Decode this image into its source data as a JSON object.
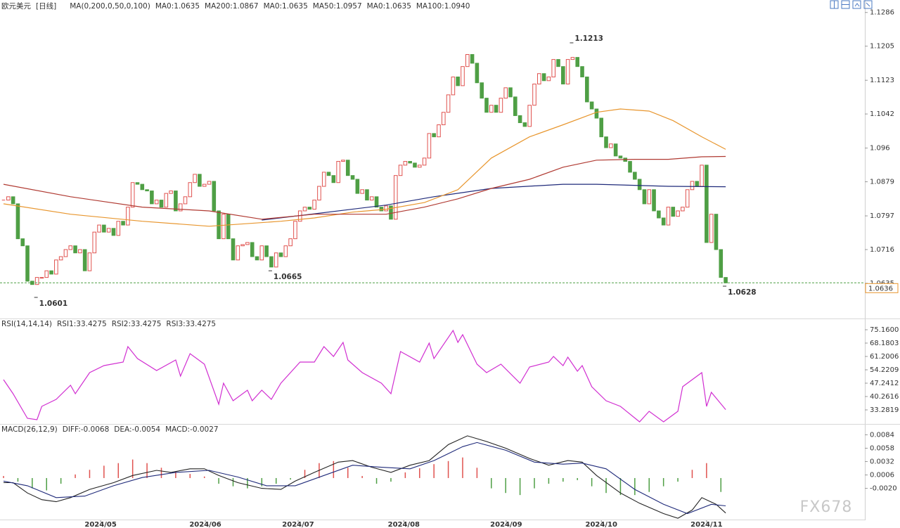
{
  "chart_data": [
    {
      "type": "candlestick",
      "title": "欧元美元",
      "subtitle": "[日线]",
      "indicator": "MA(0,200,0,50,0,100)",
      "up_color": "#e0524f",
      "down_color": "#4f9f45",
      "xlim": [
        -0.74,
        180.1
      ],
      "ylim": [
        1.0552,
        1.1316
      ],
      "yticks": [
        1.1286,
        1.1205,
        1.1123,
        1.1042,
        1.096,
        1.0879,
        1.0797,
        1.0716,
        1.0635
      ],
      "close": [
        1.0835,
        1.0843,
        1.0826,
        1.0742,
        1.0725,
        1.064,
        1.0632,
        1.0649,
        1.0649,
        1.0665,
        1.0657,
        1.0691,
        1.0699,
        1.0716,
        1.0725,
        1.0708,
        1.0716,
        1.0665,
        1.0708,
        1.0758,
        1.0775,
        1.0758,
        1.0767,
        1.075,
        1.0784,
        1.0775,
        1.0818,
        1.0877,
        1.0873,
        1.086,
        1.0857,
        1.0826,
        1.0835,
        1.0818,
        1.0851,
        1.0857,
        1.0809,
        1.0826,
        1.0843,
        1.0877,
        1.0897,
        1.0868,
        1.0873,
        1.088,
        1.0809,
        1.0742,
        1.0801,
        1.0742,
        1.0691,
        1.0725,
        1.0728,
        1.0733,
        1.0699,
        1.0691,
        1.0725,
        1.0699,
        1.0674,
        1.0708,
        1.0699,
        1.0725,
        1.0742,
        1.0784,
        1.0809,
        1.0818,
        1.0813,
        1.0835,
        1.0868,
        1.0902,
        1.0894,
        1.0877,
        1.0928,
        1.0931,
        1.0894,
        1.0885,
        1.0851,
        1.086,
        1.0835,
        1.0843,
        1.0818,
        1.0809,
        1.0821,
        1.0789,
        1.0894,
        1.0919,
        1.0928,
        1.0924,
        1.0914,
        1.0919,
        1.0936,
        1.0995,
        1.0987,
        1.1016,
        1.1046,
        1.1088,
        1.1131,
        1.111,
        1.1156,
        1.1185,
        1.1164,
        1.1117,
        1.108,
        1.1046,
        1.1063,
        1.1046,
        1.108,
        1.1105,
        1.1083,
        1.1038,
        1.1021,
        1.1012,
        1.1063,
        1.1114,
        1.1139,
        1.1122,
        1.1131,
        1.1173,
        1.1156,
        1.1114,
        1.1173,
        1.1178,
        1.1156,
        1.1131,
        1.1071,
        1.1054,
        1.1032,
        1.0987,
        1.0961,
        1.097,
        1.0941,
        1.0936,
        1.0928,
        1.0902,
        1.0885,
        1.086,
        1.0826,
        1.086,
        1.0809,
        1.0792,
        1.0775,
        1.0818,
        1.0796,
        1.0809,
        1.0818,
        1.086,
        1.088,
        1.0868,
        1.0919,
        1.0733,
        1.0801,
        1.0716,
        1.0649,
        1.0636
      ],
      "series": [
        {
          "name": "MA0:1.0635",
          "color": "#333333"
        },
        {
          "name": "MA200:1.0867",
          "color": "#1f2a7a",
          "x": [
            54,
            65,
            80,
            90,
            102,
            117,
            124,
            139,
            151
          ],
          "values": [
            1.0787,
            1.0802,
            1.0823,
            1.0843,
            1.0863,
            1.0873,
            1.0873,
            1.0868,
            1.0867
          ]
        },
        {
          "name": "MA0:1.0635",
          "color": "#d12fd1"
        },
        {
          "name": "MA50:1.0957",
          "color": "#e8962e",
          "x": [
            0,
            14,
            29,
            43,
            58,
            65,
            73,
            80,
            88,
            95,
            102,
            110,
            117,
            124,
            129,
            135,
            140,
            146,
            151
          ],
          "values": [
            1.0826,
            1.0801,
            1.0784,
            1.0772,
            1.0784,
            1.0792,
            1.0806,
            1.0813,
            1.0829,
            1.086,
            1.0936,
            1.0987,
            1.1016,
            1.1046,
            1.1054,
            1.1049,
            1.1026,
            1.0987,
            1.0957
          ]
        },
        {
          "name": "MA0:1.0635",
          "color": "#888888"
        },
        {
          "name": "MA100:1.0940",
          "color": "#b03a32",
          "x": [
            0,
            14,
            29,
            43,
            54,
            65,
            80,
            88,
            95,
            102,
            110,
            117,
            124,
            132,
            139,
            146,
            151
          ],
          "values": [
            1.0873,
            1.0843,
            1.0818,
            1.0809,
            1.0789,
            1.0801,
            1.0801,
            1.0818,
            1.0838,
            1.0863,
            1.0885,
            1.0914,
            1.0931,
            1.0933,
            1.0933,
            1.0939,
            1.094
          ]
        }
      ],
      "annotations": {
        "x": [
          119,
          7,
          56,
          151
        ],
        "values": [
          1.1213,
          1.0601,
          1.0665,
          1.0628
        ],
        "colors": [
          "#d9413b",
          "#4f9f45",
          "#4f9f45",
          "#4f9f45"
        ]
      },
      "last_price": 1.0636,
      "last_price_color": "#e8962e"
    },
    {
      "type": "line",
      "indicator": "RSI(14,14,14)",
      "xlim": [
        -0.74,
        180.1
      ],
      "ylim": [
        26.3,
        79.94
      ],
      "yticks": [
        {
          "value": 75.16,
          "label": "75.1600"
        },
        68.1803,
        61.2006,
        54.2209,
        47.2412,
        40.2616,
        33.2819
      ],
      "series": [
        {
          "name": "RSI1:33.4275",
          "color": "#333333"
        },
        {
          "name": "RSI2:33.4275",
          "color": "#1f2a7a"
        },
        {
          "name": "RSI3:33.4275",
          "color": "#d12fd1",
          "x": [
            0,
            2,
            5,
            7,
            8,
            11,
            14,
            15,
            18,
            21,
            25,
            26,
            28,
            32,
            36,
            37,
            39,
            42,
            45,
            46,
            48,
            51,
            52,
            54,
            56,
            58,
            62,
            65,
            67,
            69,
            71,
            72,
            75,
            79,
            81,
            83,
            87,
            89,
            90,
            94,
            95,
            96,
            99,
            101,
            104,
            108,
            110,
            114,
            115,
            117,
            118,
            120,
            121,
            123,
            126,
            129,
            133,
            135,
            138,
            141,
            142,
            146,
            147,
            148,
            151
          ],
          "values": [
            49.08,
            41.73,
            28.87,
            28.14,
            35.12,
            38.79,
            46.14,
            41.73,
            52.75,
            56.43,
            58.26,
            66.34,
            60.1,
            53.85,
            59.36,
            50.91,
            62.67,
            57.16,
            36.22,
            47.24,
            38.06,
            43.57,
            38.06,
            43.57,
            38.79,
            47.24,
            58.26,
            58.26,
            66.34,
            61.2,
            68.55,
            59.36,
            52.75,
            47.24,
            41.73,
            63.77,
            58.26,
            68.18,
            60.1,
            74.8,
            68.55,
            72.59,
            57.16,
            52.75,
            57.16,
            47.24,
            55.69,
            58.26,
            61.2,
            56.43,
            60.84,
            53.49,
            56.43,
            45.4,
            38.06,
            35.12,
            27.04,
            32.55,
            27.04,
            32.55,
            45.4,
            52.75,
            35.12,
            42.47,
            33.4275
          ]
        }
      ]
    },
    {
      "type": "macd",
      "indicator": "MACD(26,12,9)",
      "watermark": "FX678",
      "up_color": "#e0524f",
      "down_color": "#4f9f45",
      "xlim": [
        -0.74,
        180.1
      ],
      "ylim": [
        -0.0082,
        0.0101
      ],
      "yticks": [
        0.0084,
        0.0058,
        0.0032,
        0.0006,
        {
          "value": -0.002,
          "label": "-0.0020"
        }
      ],
      "xticks": [
        {
          "value": 20.3,
          "label": "2024/05"
        },
        {
          "value": 42.2,
          "label": "2024/06"
        },
        {
          "value": 61.6,
          "label": "2024/07"
        },
        {
          "value": 83.7,
          "label": "2024/08"
        },
        {
          "value": 105.1,
          "label": "2024/09"
        },
        {
          "value": 125,
          "label": "2024/10"
        },
        {
          "value": 147,
          "label": "2024/11"
        }
      ],
      "series": [
        {
          "name": "DIFF:-0.0068",
          "color": "#222222",
          "x": [
            0,
            2,
            5,
            8,
            11,
            14,
            18,
            23,
            27,
            32,
            35,
            39,
            42,
            45,
            49,
            54,
            58,
            61,
            65,
            70,
            73,
            77,
            81,
            85,
            89,
            93,
            97,
            101,
            105,
            110,
            114,
            118,
            121,
            124,
            129,
            133,
            138,
            141,
            144,
            146,
            149,
            151
          ],
          "values": [
            -0.0009,
            -0.0009,
            -0.0029,
            -0.0042,
            -0.0046,
            -0.0038,
            -0.0022,
            -0.0009,
            0.0005,
            0.0015,
            0.0011,
            0.0018,
            0.0018,
            0.0005,
            -0.0009,
            -0.002,
            -0.0022,
            -0.0006,
            0.0011,
            0.0031,
            0.0034,
            0.0021,
            0.0011,
            0.0025,
            0.0034,
            0.0065,
            0.0082,
            0.0071,
            0.0058,
            0.0038,
            0.0025,
            0.0034,
            0.0031,
            0.0005,
            -0.0029,
            -0.0049,
            -0.0069,
            -0.0078,
            -0.0062,
            -0.0038,
            -0.0051,
            -0.0068
          ]
        },
        {
          "name": "DEA:-0.0054",
          "color": "#1f2a7a",
          "x": [
            0,
            5,
            11,
            17,
            23,
            29,
            36,
            43,
            49,
            55,
            61,
            67,
            73,
            79,
            85,
            90,
            96,
            99,
            105,
            111,
            117,
            121,
            126,
            132,
            138,
            143,
            148,
            151
          ],
          "values": [
            -0.0006,
            -0.0015,
            -0.0038,
            -0.0035,
            -0.0015,
            0.0001,
            0.0011,
            0.0015,
            0.0002,
            -0.0015,
            -0.0015,
            0.0005,
            0.0025,
            0.0021,
            0.0018,
            0.0034,
            0.0061,
            0.0069,
            0.0054,
            0.0031,
            0.0027,
            0.0029,
            0.0018,
            -0.0022,
            -0.0051,
            -0.0069,
            -0.0051,
            -0.0054
          ]
        },
        {
          "name": "MACD:-0.0027",
          "color": "#d12fd1",
          "bars": true,
          "x": [
            0,
            3,
            6,
            9,
            12,
            15,
            18,
            21,
            24,
            27,
            30,
            33,
            36,
            39,
            42,
            45,
            48,
            51,
            54,
            57,
            60,
            63,
            66,
            69,
            72,
            75,
            78,
            81,
            84,
            87,
            90,
            93,
            96,
            99,
            102,
            105,
            108,
            111,
            114,
            117,
            120,
            123,
            126,
            129,
            132,
            135,
            138,
            141,
            144,
            147,
            150
          ],
          "values": [
            0.0004,
            -0.0007,
            -0.002,
            -0.0024,
            -0.0011,
            0.0007,
            0.0016,
            0.0024,
            0.0029,
            0.0036,
            0.0029,
            0.002,
            0.0013,
            0.0008,
            0.0003,
            -0.0011,
            -0.0016,
            -0.002,
            -0.0016,
            -0.0011,
            -0.0003,
            0.0016,
            0.0029,
            0.0033,
            0.002,
            0.0004,
            -0.0011,
            -0.0007,
            0.0011,
            0.0019,
            0.0027,
            0.0033,
            0.004,
            0.002,
            -0.002,
            -0.0029,
            -0.0033,
            -0.002,
            -0.0011,
            -0.0007,
            -0.0004,
            -0.0016,
            -0.0029,
            -0.0033,
            -0.0033,
            -0.0027,
            -0.0016,
            -0.0007,
            0.0016,
            0.0029,
            -0.0027
          ]
        }
      ]
    }
  ]
}
